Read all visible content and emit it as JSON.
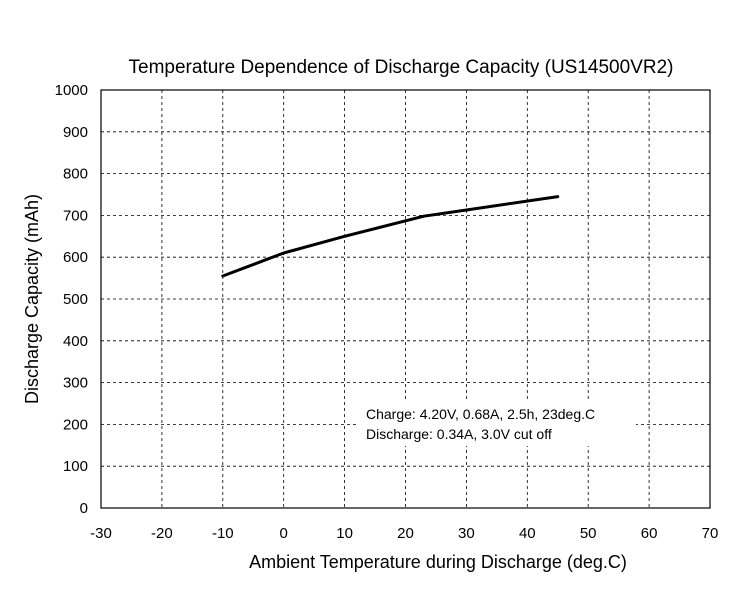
{
  "chart_data": {
    "type": "line",
    "title": "Temperature Dependence of Discharge Capacity (US14500VR2)",
    "xlabel": "Ambient Temperature during Discharge (deg.C)",
    "ylabel": "Discharge Capacity (mAh)",
    "xlim": [
      -30,
      70
    ],
    "ylim": [
      0,
      1000
    ],
    "x_ticks": [
      -30,
      -20,
      -10,
      0,
      10,
      20,
      30,
      40,
      50,
      60,
      70
    ],
    "y_ticks": [
      0,
      100,
      200,
      300,
      400,
      500,
      600,
      700,
      800,
      900,
      1000
    ],
    "grid": true,
    "series": [
      {
        "x": [
          -10,
          0,
          10,
          23,
          30,
          45
        ],
        "values": [
          555,
          610,
          650,
          698,
          713,
          745
        ]
      }
    ],
    "annotations": [
      "Charge: 4.20V, 0.68A, 2.5h, 23deg.C",
      "Discharge: 0.34A, 3.0V cut off"
    ]
  }
}
